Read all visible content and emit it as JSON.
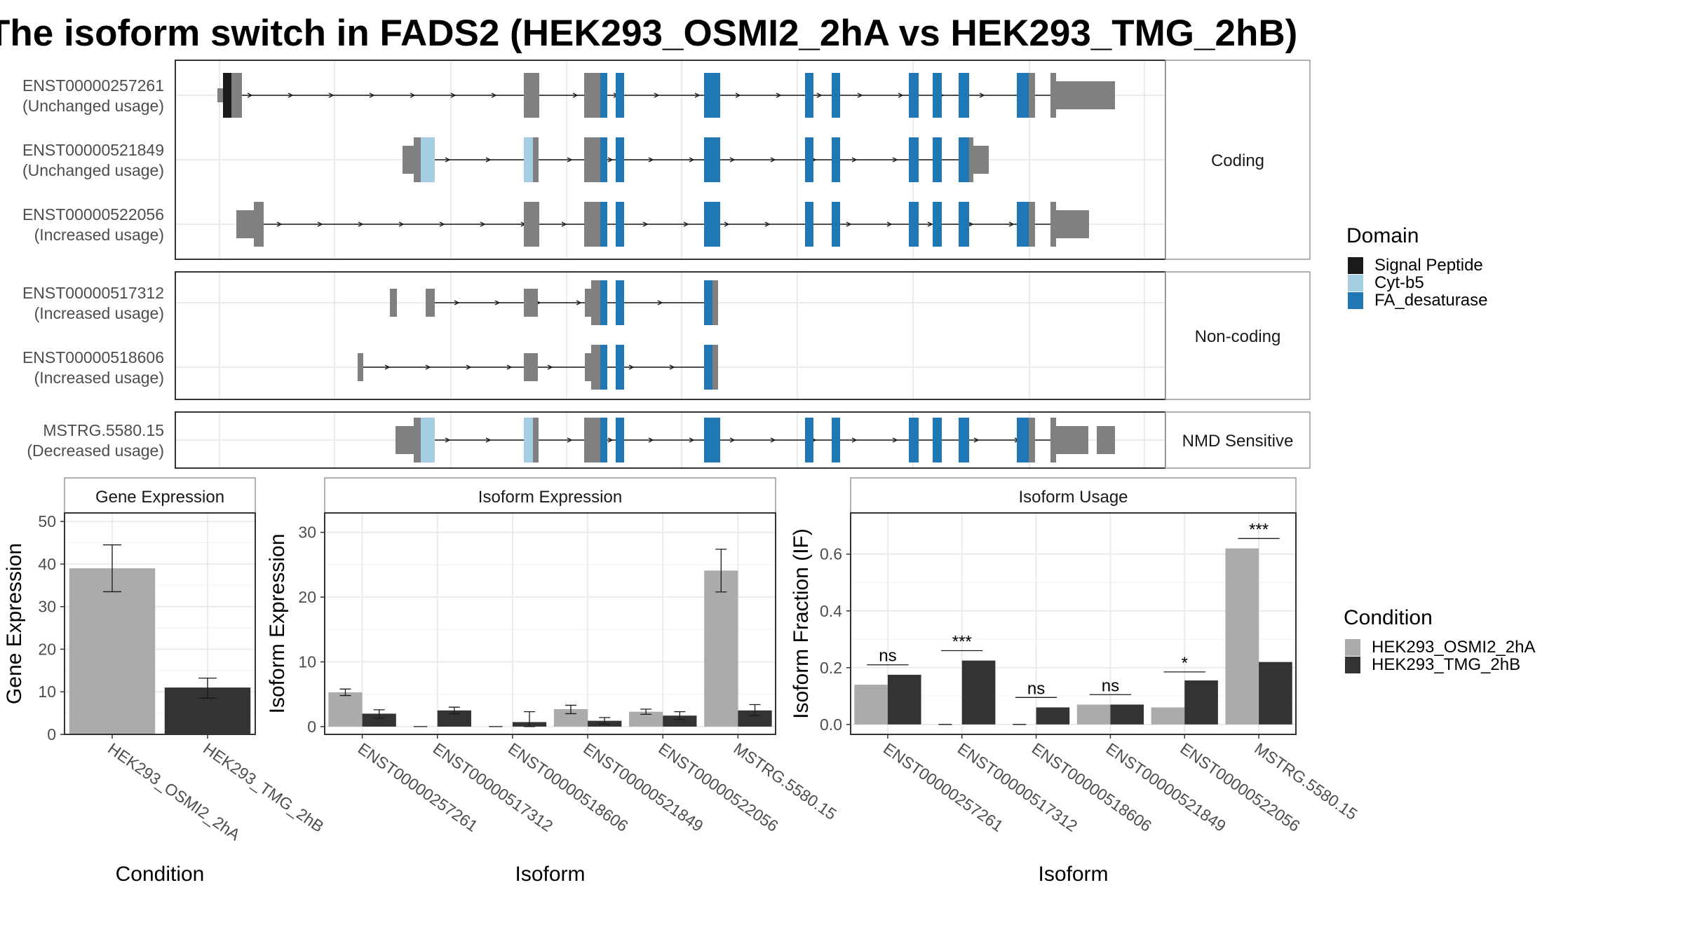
{
  "title": "The isoform switch in FADS2 (HEK293_OSMI2_2hA vs HEK293_TMG_2hB)",
  "colors": {
    "cond_a": "#ABABAB",
    "cond_b": "#333333",
    "non_domain_exon": "#808080",
    "signal_peptide": "#1A1A1A",
    "cyt_b5": "#A6CEE3",
    "fa_desaturase": "#1F78B4"
  },
  "legends": {
    "domain": {
      "title": "Domain",
      "items": [
        {
          "label": "Signal Peptide",
          "color": "#1A1A1A"
        },
        {
          "label": "Cyt-b5",
          "color": "#A6CEE3"
        },
        {
          "label": "FA_desaturase",
          "color": "#1F78B4"
        }
      ]
    },
    "condition": {
      "title": "Condition",
      "items": [
        {
          "label": "HEK293_OSMI2_2hA",
          "color": "#ABABAB"
        },
        {
          "label": "HEK293_TMG_2hB",
          "color": "#333333"
        }
      ]
    }
  },
  "chart_data": [
    {
      "type": "isoform-structure",
      "groups": [
        {
          "label": "Coding",
          "isoforms": [
            {
              "id": "ENST00000257261",
              "usage": "(Unchanged usage)"
            },
            {
              "id": "ENST00000521849",
              "usage": "(Unchanged usage)"
            },
            {
              "id": "ENST00000522056",
              "usage": "(Increased usage)"
            }
          ]
        },
        {
          "label": "Non-coding",
          "isoforms": [
            {
              "id": "ENST00000517312",
              "usage": "(Increased usage)"
            },
            {
              "id": "ENST00000518606",
              "usage": "(Increased usage)"
            }
          ]
        },
        {
          "label": "NMD Sensitive",
          "isoforms": [
            {
              "id": "MSTRG.5580.15",
              "usage": "(Decreased usage)"
            }
          ]
        }
      ]
    },
    {
      "type": "bar",
      "strip": "Gene Expression",
      "xlabel": "Condition",
      "ylabel": "Gene Expression",
      "ylim": [
        0,
        52
      ],
      "yticks": [
        0,
        10,
        20,
        30,
        40,
        50
      ],
      "categories": [
        "HEK293_OSMI2_2hA",
        "HEK293_TMG_2hB"
      ],
      "values": [
        39,
        11
      ],
      "error_low": [
        33.5,
        8.5
      ],
      "error_high": [
        44.5,
        13.2
      ]
    },
    {
      "type": "bar",
      "strip": "Isoform Expression",
      "xlabel": "Isoform",
      "ylabel": "Isoform Expression",
      "ylim": [
        -1.2,
        33
      ],
      "yticks": [
        0,
        10,
        20,
        30
      ],
      "categories": [
        "ENST00000257261",
        "ENST00000517312",
        "ENST00000518606",
        "ENST00000521849",
        "ENST00000522056",
        "MSTRG.5580.15"
      ],
      "series": [
        {
          "name": "HEK293_OSMI2_2hA",
          "values": [
            5.3,
            0,
            0,
            2.7,
            2.3,
            24.1
          ],
          "error_low": [
            4.8,
            0,
            0,
            2.0,
            1.9,
            20.8
          ],
          "error_high": [
            5.8,
            0,
            0,
            3.3,
            2.7,
            27.4
          ]
        },
        {
          "name": "HEK293_TMG_2hB",
          "values": [
            2.0,
            2.5,
            0.7,
            0.9,
            1.7,
            2.5
          ],
          "error_low": [
            1.3,
            2.0,
            0.0,
            0.4,
            1.1,
            1.7
          ],
          "error_high": [
            2.6,
            3.0,
            2.3,
            1.4,
            2.3,
            3.4
          ]
        }
      ]
    },
    {
      "type": "bar",
      "strip": "Isoform Usage",
      "xlabel": "Isoform",
      "ylabel": "Isoform Fraction (IF)",
      "ylim": [
        -0.035,
        0.745
      ],
      "yticks": [
        0.0,
        0.2,
        0.4,
        0.6
      ],
      "ytick_labels": [
        "0.0",
        "0.2",
        "0.4",
        "0.6"
      ],
      "categories": [
        "ENST00000257261",
        "ENST00000517312",
        "ENST00000518606",
        "ENST00000521849",
        "ENST00000522056",
        "MSTRG.5580.15"
      ],
      "series": [
        {
          "name": "HEK293_OSMI2_2hA",
          "values": [
            0.14,
            0.0,
            0.0,
            0.07,
            0.06,
            0.62
          ]
        },
        {
          "name": "HEK293_TMG_2hB",
          "values": [
            0.175,
            0.225,
            0.06,
            0.07,
            0.155,
            0.22
          ]
        }
      ],
      "significance": [
        "ns",
        "***",
        "ns",
        "ns",
        "*",
        "***"
      ],
      "significance_line_y": [
        0.21,
        0.26,
        0.095,
        0.105,
        0.185,
        0.655
      ]
    }
  ]
}
